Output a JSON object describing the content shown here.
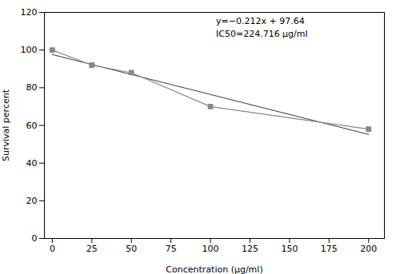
{
  "chart_data": {
    "type": "line",
    "xlabel": "Concentration (μg/ml)",
    "ylabel": "Survival percent",
    "series": [
      {
        "color": "#888888",
        "marker": "square",
        "x": [
          0,
          25,
          50,
          100,
          200
        ],
        "values": [
          100,
          92,
          88,
          70,
          58
        ]
      },
      {
        "color": "#444444",
        "x": [
          0,
          200
        ],
        "values": [
          97.64,
          55.24
        ]
      }
    ],
    "annotations": [
      "y=−0.212x + 97.64",
      "IC50=224.716 μg/ml"
    ],
    "xlim": [
      -5,
      210
    ],
    "ylim": [
      0,
      120
    ],
    "xticks": [
      0,
      25,
      50,
      75,
      100,
      125,
      150,
      175,
      200
    ],
    "yticks": [
      0,
      20,
      40,
      60,
      80,
      100,
      120
    ],
    "grid": false
  }
}
